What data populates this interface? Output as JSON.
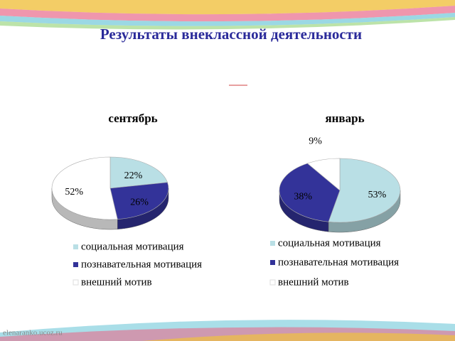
{
  "slide_title": "Результаты внеклассной деятельности",
  "watermark": "elenaranko.ucoz.ru",
  "chart_data": [
    {
      "type": "pie",
      "title": "сентябрь",
      "categories": [
        "социальная мотивация",
        "познавательная мотивация",
        "внешний мотив"
      ],
      "values": [
        22,
        26,
        52
      ],
      "value_labels": [
        "22%",
        "26%",
        "52%"
      ],
      "colors": [
        "#b9dfe5",
        "#333399",
        "#ffffff"
      ]
    },
    {
      "type": "pie",
      "title": "январь",
      "categories": [
        "социальная мотивация",
        "познавательная мотивация",
        "внешний мотив"
      ],
      "values": [
        53,
        38,
        9
      ],
      "value_labels": [
        "53%",
        "38%",
        "9%"
      ],
      "colors": [
        "#b9dfe5",
        "#333399",
        "#ffffff"
      ]
    }
  ]
}
